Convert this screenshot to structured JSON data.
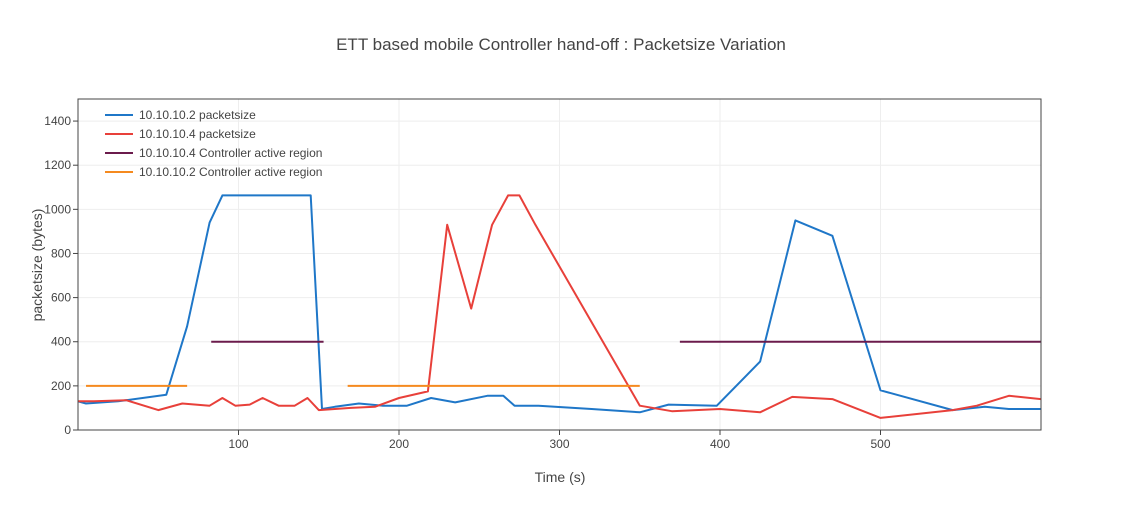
{
  "chart_data": {
    "type": "line",
    "title": "ETT based mobile Controller hand-off :  Packetsize Variation",
    "xlabel": "Time (s)",
    "ylabel": "packetsize (bytes)",
    "xlim": [
      0,
      600
    ],
    "ylim": [
      0,
      1500
    ],
    "x_ticks": [
      100,
      200,
      300,
      400,
      500
    ],
    "y_ticks": [
      0,
      200,
      400,
      600,
      800,
      1000,
      1200,
      1400
    ],
    "grid": true,
    "legend_position": "top-left",
    "series": [
      {
        "name": "10.10.10.2 packetsize",
        "color": "#1f77c8",
        "x": [
          0,
          5,
          25,
          55,
          68,
          82,
          90,
          118,
          145,
          152,
          160,
          175,
          190,
          205,
          220,
          235,
          255,
          265,
          272,
          287,
          320,
          350,
          368,
          398,
          425,
          447,
          470,
          500,
          545,
          565,
          580,
          600
        ],
        "y": [
          130,
          120,
          130,
          160,
          470,
          940,
          1063,
          1063,
          1063,
          95,
          105,
          120,
          110,
          110,
          145,
          125,
          155,
          155,
          110,
          110,
          95,
          80,
          115,
          110,
          310,
          950,
          880,
          180,
          90,
          105,
          95,
          95
        ]
      },
      {
        "name": "10.10.10.4 packetsize",
        "color": "#e8403a",
        "x": [
          0,
          10,
          30,
          50,
          65,
          82,
          90,
          98,
          107,
          115,
          125,
          135,
          143,
          150,
          160,
          170,
          185,
          200,
          218,
          230,
          245,
          258,
          268,
          275,
          285,
          350,
          370,
          400,
          425,
          445,
          470,
          500,
          545,
          560,
          580,
          600
        ],
        "y": [
          130,
          130,
          135,
          90,
          120,
          110,
          145,
          110,
          115,
          145,
          110,
          110,
          145,
          90,
          95,
          100,
          105,
          145,
          175,
          930,
          550,
          930,
          1063,
          1063,
          930,
          110,
          85,
          95,
          80,
          150,
          140,
          55,
          90,
          110,
          155,
          140
        ]
      },
      {
        "name": "10.10.10.4 Controller active region",
        "color": "#6b1b4c",
        "segments": [
          [
            [
              83,
              400
            ],
            [
              153,
              400
            ]
          ],
          [
            [
              375,
              400
            ],
            [
              600,
              400
            ]
          ]
        ]
      },
      {
        "name": "10.10.10.2 Controller active region",
        "color": "#f58a1f",
        "segments": [
          [
            [
              5,
              200
            ],
            [
              68,
              200
            ]
          ],
          [
            [
              168,
              200
            ],
            [
              350,
              200
            ]
          ]
        ]
      }
    ]
  }
}
